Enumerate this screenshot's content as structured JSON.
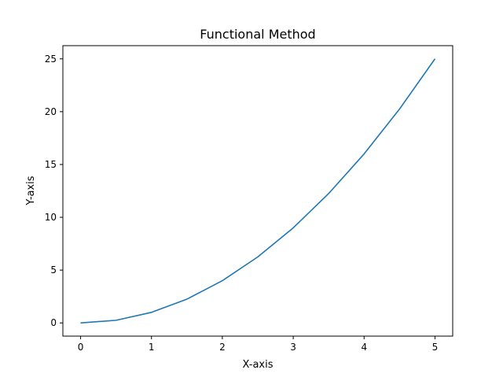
{
  "chart_data": {
    "type": "line",
    "title": "Functional Method",
    "xlabel": "X-axis",
    "ylabel": "Y-axis",
    "x": [
      0,
      0.5,
      1,
      1.5,
      2,
      2.5,
      3,
      3.5,
      4,
      4.5,
      5
    ],
    "series": [
      {
        "values": [
          0,
          0.25,
          1,
          2.25,
          4,
          6.25,
          9,
          12.25,
          16,
          20.25,
          25
        ],
        "color": "#1f77b4"
      }
    ],
    "xlim": [
      -0.25,
      5.25
    ],
    "ylim": [
      -1.25,
      26.25
    ],
    "xticks": [
      0,
      1,
      2,
      3,
      4,
      5
    ],
    "xtick_labels": [
      "0",
      "1",
      "2",
      "3",
      "4",
      "5"
    ],
    "yticks": [
      0,
      5,
      10,
      15,
      20,
      25
    ],
    "ytick_labels": [
      "0",
      "5",
      "10",
      "15",
      "20",
      "25"
    ],
    "grid": false,
    "legend": "none"
  }
}
